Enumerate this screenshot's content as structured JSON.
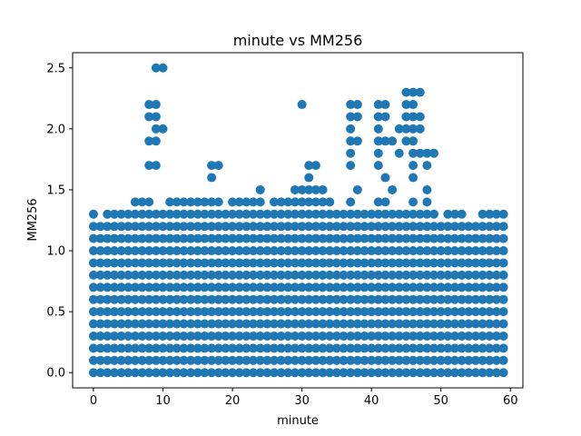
{
  "chart_data": {
    "type": "scatter",
    "title": "minute vs MM256",
    "xlabel": "minute",
    "ylabel": "MM256",
    "xlim": [
      -3.0,
      61.8
    ],
    "ylim": [
      -0.125,
      2.625
    ],
    "xticks": [
      0,
      10,
      20,
      30,
      40,
      50,
      60
    ],
    "xtick_labels": [
      "0",
      "10",
      "20",
      "30",
      "40",
      "50",
      "60"
    ],
    "yticks": [
      0.0,
      0.5,
      1.0,
      1.5,
      2.0,
      2.5
    ],
    "ytick_labels": [
      "0.0",
      "0.5",
      "1.0",
      "1.5",
      "2.0",
      "2.5"
    ],
    "grid": false,
    "marker_color": "#1f77b4",
    "series": [
      {
        "name": "",
        "points": [
          [
            9,
            2.5
          ],
          [
            10,
            2.5
          ],
          [
            8,
            2.2
          ],
          [
            9,
            2.2
          ],
          [
            8,
            2.1
          ],
          [
            9,
            2.1
          ],
          [
            9,
            2.0
          ],
          [
            10,
            2.0
          ],
          [
            8,
            1.9
          ],
          [
            9,
            1.9
          ],
          [
            8,
            1.7
          ],
          [
            9,
            1.7
          ],
          [
            6,
            1.4
          ],
          [
            7,
            1.4
          ],
          [
            8,
            1.4
          ],
          [
            11,
            1.4
          ],
          [
            12,
            1.4
          ],
          [
            13,
            1.4
          ],
          [
            14,
            1.4
          ],
          [
            15,
            1.4
          ],
          [
            16,
            1.4
          ],
          [
            17,
            1.4
          ],
          [
            18,
            1.4
          ],
          [
            17,
            1.7
          ],
          [
            18,
            1.7
          ],
          [
            17,
            1.6
          ],
          [
            20,
            1.4
          ],
          [
            21,
            1.4
          ],
          [
            22,
            1.4
          ],
          [
            23,
            1.4
          ],
          [
            24,
            1.4
          ],
          [
            24,
            1.5
          ],
          [
            26,
            1.4
          ],
          [
            27,
            1.4
          ],
          [
            28,
            1.4
          ],
          [
            29,
            1.4
          ],
          [
            30,
            1.4
          ],
          [
            31,
            1.4
          ],
          [
            32,
            1.4
          ],
          [
            33,
            1.4
          ],
          [
            34,
            1.4
          ],
          [
            29,
            1.5
          ],
          [
            30,
            1.5
          ],
          [
            31,
            1.5
          ],
          [
            32,
            1.5
          ],
          [
            33,
            1.5
          ],
          [
            30,
            2.2
          ],
          [
            31,
            1.7
          ],
          [
            32,
            1.7
          ],
          [
            31,
            1.6
          ],
          [
            37,
            2.2
          ],
          [
            38,
            2.2
          ],
          [
            37,
            2.1
          ],
          [
            38,
            2.1
          ],
          [
            37,
            2.0
          ],
          [
            37,
            1.9
          ],
          [
            38,
            1.9
          ],
          [
            37,
            1.8
          ],
          [
            37,
            1.7
          ],
          [
            37,
            1.4
          ],
          [
            38,
            1.5
          ],
          [
            41,
            2.2
          ],
          [
            42,
            2.2
          ],
          [
            41,
            2.1
          ],
          [
            42,
            2.1
          ],
          [
            41,
            2.0
          ],
          [
            41,
            1.9
          ],
          [
            42,
            1.9
          ],
          [
            43,
            1.9
          ],
          [
            41,
            1.8
          ],
          [
            41,
            1.7
          ],
          [
            42,
            1.6
          ],
          [
            41,
            1.4
          ],
          [
            42,
            1.4
          ],
          [
            43,
            1.5
          ],
          [
            44,
            2.0
          ],
          [
            44,
            1.8
          ],
          [
            45,
            2.3
          ],
          [
            46,
            2.3
          ],
          [
            47,
            2.3
          ],
          [
            45,
            2.2
          ],
          [
            46,
            2.2
          ],
          [
            45,
            2.1
          ],
          [
            46,
            2.1
          ],
          [
            47,
            2.1
          ],
          [
            45,
            2.0
          ],
          [
            46,
            2.0
          ],
          [
            47,
            2.0
          ],
          [
            45,
            1.9
          ],
          [
            46,
            1.9
          ],
          [
            46,
            1.8
          ],
          [
            47,
            1.8
          ],
          [
            48,
            1.8
          ],
          [
            49,
            1.8
          ],
          [
            46,
            1.7
          ],
          [
            48,
            1.7
          ],
          [
            46,
            1.6
          ],
          [
            48,
            1.5
          ],
          [
            46,
            1.4
          ],
          [
            48,
            1.4
          ],
          [
            51,
            1.3
          ],
          [
            52,
            1.3
          ],
          [
            53,
            1.3
          ],
          [
            56,
            1.3
          ],
          [
            57,
            1.3
          ],
          [
            58,
            1.3
          ],
          [
            59,
            1.3
          ],
          [
            0,
            1.3
          ],
          [
            2,
            1.3
          ],
          [
            3,
            1.3
          ],
          [
            4,
            1.3
          ],
          [
            5,
            1.3
          ],
          [
            6,
            1.3
          ],
          [
            7,
            1.3
          ],
          [
            8,
            1.3
          ],
          [
            9,
            1.3
          ],
          [
            10,
            1.3
          ],
          [
            11,
            1.3
          ],
          [
            12,
            1.3
          ],
          [
            13,
            1.3
          ],
          [
            14,
            1.3
          ],
          [
            15,
            1.3
          ],
          [
            16,
            1.3
          ],
          [
            17,
            1.3
          ],
          [
            18,
            1.3
          ],
          [
            19,
            1.3
          ],
          [
            20,
            1.3
          ],
          [
            21,
            1.3
          ],
          [
            22,
            1.3
          ],
          [
            23,
            1.3
          ],
          [
            24,
            1.3
          ],
          [
            25,
            1.3
          ],
          [
            26,
            1.3
          ],
          [
            27,
            1.3
          ],
          [
            28,
            1.3
          ],
          [
            29,
            1.3
          ],
          [
            30,
            1.3
          ],
          [
            31,
            1.3
          ],
          [
            32,
            1.3
          ],
          [
            33,
            1.3
          ],
          [
            34,
            1.3
          ],
          [
            35,
            1.3
          ],
          [
            36,
            1.3
          ],
          [
            37,
            1.3
          ],
          [
            38,
            1.3
          ],
          [
            39,
            1.3
          ],
          [
            40,
            1.3
          ],
          [
            41,
            1.3
          ],
          [
            42,
            1.3
          ],
          [
            43,
            1.3
          ],
          [
            44,
            1.3
          ],
          [
            45,
            1.3
          ],
          [
            46,
            1.3
          ],
          [
            47,
            1.3
          ],
          [
            48,
            1.3
          ],
          [
            49,
            1.3
          ]
        ],
        "dense_rows": {
          "x_range": [
            0,
            59
          ],
          "y_values": [
            0.0,
            0.1,
            0.2,
            0.3,
            0.4,
            0.5,
            0.6,
            0.7,
            0.8,
            0.9,
            1.0,
            1.1,
            1.2
          ]
        }
      }
    ]
  }
}
